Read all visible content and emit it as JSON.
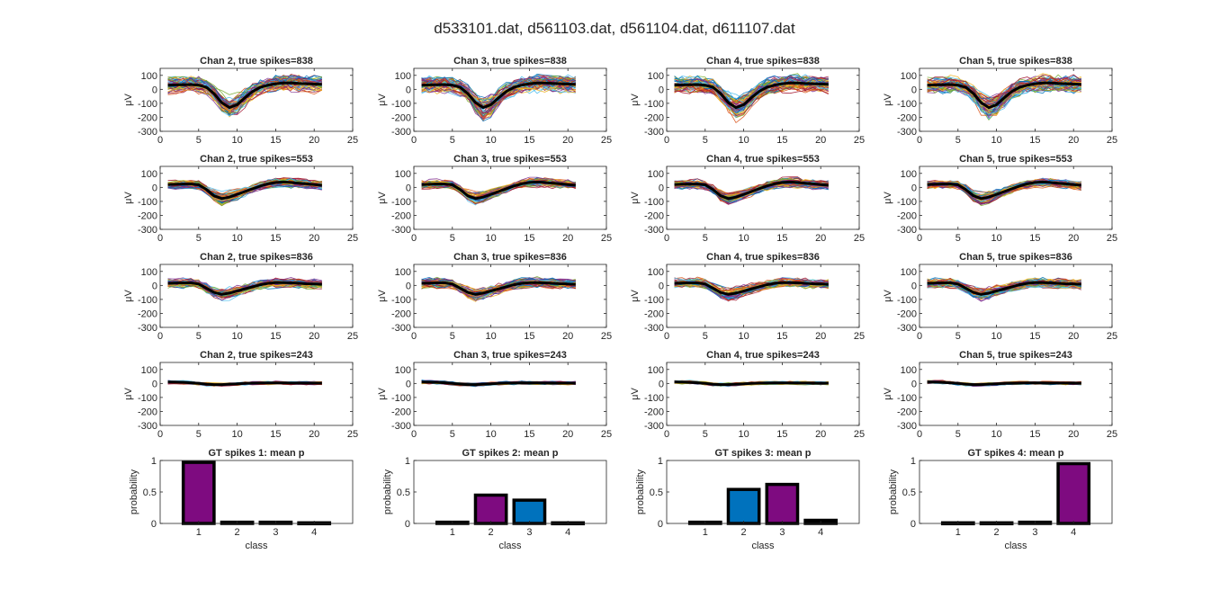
{
  "figure": {
    "title": "d533101.dat, d561103.dat, d561104.dat, d611107.dat",
    "colors": {
      "mean_line": "#000000",
      "bar_purple": "#7e0b80",
      "bar_blue": "#0072bd",
      "trace_palette": [
        "#0072bd",
        "#d95319",
        "#edb120",
        "#7e2f8e",
        "#77ac30",
        "#4dbeee",
        "#a2142f"
      ]
    }
  },
  "chart_data": [
    {
      "type": "line",
      "grid_row": 0,
      "grid_col": 0,
      "title": "Chan 2, true spikes=838",
      "ylabel": "μV",
      "xlim": [
        0,
        25
      ],
      "ylim": [
        -300,
        150
      ],
      "xticks": [
        0,
        5,
        10,
        15,
        20,
        25
      ],
      "yticks": [
        -300,
        -200,
        -100,
        0,
        100
      ],
      "grid": false,
      "x_samples": [
        1,
        21
      ],
      "mean_waveform": [
        30,
        32,
        33,
        34,
        30,
        15,
        -30,
        -95,
        -130,
        -110,
        -60,
        -15,
        15,
        30,
        40,
        45,
        45,
        42,
        40,
        38,
        35
      ],
      "trace_spread": 70
    },
    {
      "type": "line",
      "grid_row": 0,
      "grid_col": 1,
      "title": "Chan 3, true spikes=838",
      "ylabel": "μV",
      "xlim": [
        0,
        25
      ],
      "ylim": [
        -300,
        150
      ],
      "xticks": [
        0,
        5,
        10,
        15,
        20,
        25
      ],
      "yticks": [
        -300,
        -200,
        -100,
        0,
        100
      ],
      "grid": false,
      "x_samples": [
        1,
        21
      ],
      "mean_waveform": [
        30,
        32,
        33,
        34,
        30,
        15,
        -30,
        -95,
        -130,
        -110,
        -60,
        -15,
        15,
        30,
        40,
        45,
        45,
        42,
        40,
        38,
        35
      ],
      "trace_spread": 70
    },
    {
      "type": "line",
      "grid_row": 0,
      "grid_col": 2,
      "title": "Chan 4, true spikes=838",
      "ylabel": "μV",
      "xlim": [
        0,
        25
      ],
      "ylim": [
        -300,
        150
      ],
      "xticks": [
        0,
        5,
        10,
        15,
        20,
        25
      ],
      "yticks": [
        -300,
        -200,
        -100,
        0,
        100
      ],
      "grid": false,
      "x_samples": [
        1,
        21
      ],
      "mean_waveform": [
        30,
        32,
        33,
        34,
        30,
        15,
        -30,
        -95,
        -130,
        -110,
        -60,
        -15,
        15,
        30,
        40,
        45,
        45,
        42,
        40,
        38,
        35
      ],
      "trace_spread": 70
    },
    {
      "type": "line",
      "grid_row": 0,
      "grid_col": 3,
      "title": "Chan 5, true spikes=838",
      "ylabel": "μV",
      "xlim": [
        0,
        25
      ],
      "ylim": [
        -300,
        150
      ],
      "xticks": [
        0,
        5,
        10,
        15,
        20,
        25
      ],
      "yticks": [
        -300,
        -200,
        -100,
        0,
        100
      ],
      "grid": false,
      "x_samples": [
        1,
        21
      ],
      "mean_waveform": [
        30,
        32,
        33,
        34,
        30,
        15,
        -30,
        -95,
        -130,
        -110,
        -60,
        -15,
        15,
        30,
        40,
        45,
        45,
        42,
        40,
        38,
        35
      ],
      "trace_spread": 70
    },
    {
      "type": "line",
      "grid_row": 1,
      "grid_col": 0,
      "title": "Chan 2, true spikes=553",
      "ylabel": "μV",
      "xlim": [
        0,
        25
      ],
      "ylim": [
        -300,
        150
      ],
      "xticks": [
        0,
        5,
        10,
        15,
        20,
        25
      ],
      "yticks": [
        -300,
        -200,
        -100,
        0,
        100
      ],
      "grid": false,
      "x_samples": [
        1,
        21
      ],
      "mean_waveform": [
        20,
        22,
        24,
        24,
        18,
        -15,
        -60,
        -80,
        -70,
        -50,
        -30,
        -10,
        10,
        25,
        35,
        38,
        35,
        30,
        25,
        20,
        15
      ],
      "trace_spread": 35
    },
    {
      "type": "line",
      "grid_row": 1,
      "grid_col": 1,
      "title": "Chan 3, true spikes=553",
      "ylabel": "μV",
      "xlim": [
        0,
        25
      ],
      "ylim": [
        -300,
        150
      ],
      "xticks": [
        0,
        5,
        10,
        15,
        20,
        25
      ],
      "yticks": [
        -300,
        -200,
        -100,
        0,
        100
      ],
      "grid": false,
      "x_samples": [
        1,
        21
      ],
      "mean_waveform": [
        20,
        22,
        24,
        24,
        18,
        -15,
        -60,
        -80,
        -70,
        -50,
        -30,
        -10,
        10,
        25,
        35,
        38,
        35,
        30,
        25,
        20,
        15
      ],
      "trace_spread": 35
    },
    {
      "type": "line",
      "grid_row": 1,
      "grid_col": 2,
      "title": "Chan 4, true spikes=553",
      "ylabel": "μV",
      "xlim": [
        0,
        25
      ],
      "ylim": [
        -300,
        150
      ],
      "xticks": [
        0,
        5,
        10,
        15,
        20,
        25
      ],
      "yticks": [
        -300,
        -200,
        -100,
        0,
        100
      ],
      "grid": false,
      "x_samples": [
        1,
        21
      ],
      "mean_waveform": [
        20,
        22,
        24,
        24,
        18,
        -15,
        -60,
        -80,
        -70,
        -50,
        -30,
        -10,
        10,
        25,
        35,
        38,
        35,
        30,
        25,
        20,
        15
      ],
      "trace_spread": 35
    },
    {
      "type": "line",
      "grid_row": 1,
      "grid_col": 3,
      "title": "Chan 5, true spikes=553",
      "ylabel": "μV",
      "xlim": [
        0,
        25
      ],
      "ylim": [
        -300,
        150
      ],
      "xticks": [
        0,
        5,
        10,
        15,
        20,
        25
      ],
      "yticks": [
        -300,
        -200,
        -100,
        0,
        100
      ],
      "grid": false,
      "x_samples": [
        1,
        21
      ],
      "mean_waveform": [
        20,
        22,
        24,
        24,
        18,
        -15,
        -60,
        -80,
        -70,
        -50,
        -30,
        -10,
        10,
        25,
        35,
        38,
        35,
        30,
        25,
        20,
        15
      ],
      "trace_spread": 35
    },
    {
      "type": "line",
      "grid_row": 2,
      "grid_col": 0,
      "title": "Chan 2, true spikes=836",
      "ylabel": "μV",
      "xlim": [
        0,
        25
      ],
      "ylim": [
        -300,
        150
      ],
      "xticks": [
        0,
        5,
        10,
        15,
        20,
        25
      ],
      "yticks": [
        -300,
        -200,
        -100,
        0,
        100
      ],
      "grid": false,
      "x_samples": [
        1,
        21
      ],
      "mean_waveform": [
        15,
        17,
        18,
        18,
        10,
        -20,
        -50,
        -65,
        -55,
        -40,
        -25,
        -10,
        5,
        15,
        20,
        20,
        18,
        15,
        12,
        10,
        8
      ],
      "trace_spread": 40
    },
    {
      "type": "line",
      "grid_row": 2,
      "grid_col": 1,
      "title": "Chan 3, true spikes=836",
      "ylabel": "μV",
      "xlim": [
        0,
        25
      ],
      "ylim": [
        -300,
        150
      ],
      "xticks": [
        0,
        5,
        10,
        15,
        20,
        25
      ],
      "yticks": [
        -300,
        -200,
        -100,
        0,
        100
      ],
      "grid": false,
      "x_samples": [
        1,
        21
      ],
      "mean_waveform": [
        15,
        17,
        18,
        18,
        10,
        -20,
        -50,
        -65,
        -55,
        -40,
        -25,
        -10,
        5,
        15,
        20,
        20,
        18,
        15,
        12,
        10,
        8
      ],
      "trace_spread": 40
    },
    {
      "type": "line",
      "grid_row": 2,
      "grid_col": 2,
      "title": "Chan 4, true spikes=836",
      "ylabel": "μV",
      "xlim": [
        0,
        25
      ],
      "ylim": [
        -300,
        150
      ],
      "xticks": [
        0,
        5,
        10,
        15,
        20,
        25
      ],
      "yticks": [
        -300,
        -200,
        -100,
        0,
        100
      ],
      "grid": false,
      "x_samples": [
        1,
        21
      ],
      "mean_waveform": [
        15,
        17,
        18,
        18,
        10,
        -20,
        -50,
        -65,
        -55,
        -40,
        -25,
        -10,
        5,
        15,
        20,
        20,
        18,
        15,
        12,
        10,
        8
      ],
      "trace_spread": 40
    },
    {
      "type": "line",
      "grid_row": 2,
      "grid_col": 3,
      "title": "Chan 5, true spikes=836",
      "ylabel": "μV",
      "xlim": [
        0,
        25
      ],
      "ylim": [
        -300,
        150
      ],
      "xticks": [
        0,
        5,
        10,
        15,
        20,
        25
      ],
      "yticks": [
        -300,
        -200,
        -100,
        0,
        100
      ],
      "grid": false,
      "x_samples": [
        1,
        21
      ],
      "mean_waveform": [
        15,
        17,
        18,
        18,
        10,
        -20,
        -50,
        -65,
        -55,
        -40,
        -25,
        -10,
        5,
        15,
        20,
        20,
        18,
        15,
        12,
        10,
        8
      ],
      "trace_spread": 40
    },
    {
      "type": "line",
      "grid_row": 3,
      "grid_col": 0,
      "title": "Chan 2, true spikes=243",
      "ylabel": "μV",
      "xlim": [
        0,
        25
      ],
      "ylim": [
        -300,
        150
      ],
      "xticks": [
        0,
        5,
        10,
        15,
        20,
        25
      ],
      "yticks": [
        -300,
        -200,
        -100,
        0,
        100
      ],
      "grid": false,
      "x_samples": [
        1,
        21
      ],
      "mean_waveform": [
        10,
        9,
        8,
        5,
        0,
        -5,
        -8,
        -8,
        -5,
        -3,
        0,
        2,
        3,
        4,
        4,
        4,
        3,
        3,
        2,
        2,
        2
      ],
      "trace_spread": 14
    },
    {
      "type": "line",
      "grid_row": 3,
      "grid_col": 1,
      "title": "Chan 3, true spikes=243",
      "ylabel": "μV",
      "xlim": [
        0,
        25
      ],
      "ylim": [
        -300,
        150
      ],
      "xticks": [
        0,
        5,
        10,
        15,
        20,
        25
      ],
      "yticks": [
        -300,
        -200,
        -100,
        0,
        100
      ],
      "grid": false,
      "x_samples": [
        1,
        21
      ],
      "mean_waveform": [
        10,
        9,
        8,
        5,
        0,
        -5,
        -8,
        -8,
        -5,
        -3,
        0,
        2,
        3,
        4,
        4,
        4,
        3,
        3,
        2,
        2,
        2
      ],
      "trace_spread": 14
    },
    {
      "type": "line",
      "grid_row": 3,
      "grid_col": 2,
      "title": "Chan 4, true spikes=243",
      "ylabel": "μV",
      "xlim": [
        0,
        25
      ],
      "ylim": [
        -300,
        150
      ],
      "xticks": [
        0,
        5,
        10,
        15,
        20,
        25
      ],
      "yticks": [
        -300,
        -200,
        -100,
        0,
        100
      ],
      "grid": false,
      "x_samples": [
        1,
        21
      ],
      "mean_waveform": [
        10,
        9,
        8,
        5,
        0,
        -5,
        -8,
        -8,
        -5,
        -3,
        0,
        2,
        3,
        4,
        4,
        4,
        3,
        3,
        2,
        2,
        2
      ],
      "trace_spread": 14
    },
    {
      "type": "line",
      "grid_row": 3,
      "grid_col": 3,
      "title": "Chan 5, true spikes=243",
      "ylabel": "μV",
      "xlim": [
        0,
        25
      ],
      "ylim": [
        -300,
        150
      ],
      "xticks": [
        0,
        5,
        10,
        15,
        20,
        25
      ],
      "yticks": [
        -300,
        -200,
        -100,
        0,
        100
      ],
      "grid": false,
      "x_samples": [
        1,
        21
      ],
      "mean_waveform": [
        10,
        9,
        8,
        5,
        0,
        -5,
        -8,
        -8,
        -5,
        -3,
        0,
        2,
        3,
        4,
        4,
        4,
        3,
        3,
        2,
        2,
        2
      ],
      "trace_spread": 14
    },
    {
      "type": "bar",
      "grid_row": 4,
      "grid_col": 0,
      "title": "GT spikes 1: mean p",
      "xlabel": "class",
      "ylabel": "probability",
      "categories": [
        "1",
        "2",
        "3",
        "4"
      ],
      "values": [
        0.97,
        0.02,
        0.02,
        0.01
      ],
      "bar_colors": [
        "#7e0b80",
        "#7e0b80",
        "#7e0b80",
        "#7e0b80"
      ],
      "xlim": [
        0,
        5
      ],
      "ylim": [
        0,
        1
      ],
      "yticks": [
        "0",
        "0.5",
        "1"
      ]
    },
    {
      "type": "bar",
      "grid_row": 4,
      "grid_col": 1,
      "title": "GT spikes 2: mean p",
      "xlabel": "class",
      "ylabel": "probability",
      "categories": [
        "1",
        "2",
        "3",
        "4"
      ],
      "values": [
        0.02,
        0.45,
        0.37,
        0.01
      ],
      "bar_colors": [
        "#7e0b80",
        "#7e0b80",
        "#0072bd",
        "#7e0b80"
      ],
      "xlim": [
        0,
        5
      ],
      "ylim": [
        0,
        1
      ],
      "yticks": [
        "0",
        "0.5",
        "1"
      ]
    },
    {
      "type": "bar",
      "grid_row": 4,
      "grid_col": 2,
      "title": "GT spikes 3: mean p",
      "xlabel": "class",
      "ylabel": "probability",
      "categories": [
        "1",
        "2",
        "3",
        "4"
      ],
      "values": [
        0.02,
        0.54,
        0.62,
        0.05
      ],
      "bar_colors": [
        "#7e0b80",
        "#0072bd",
        "#7e0b80",
        "#7e0b80"
      ],
      "xlim": [
        0,
        5
      ],
      "ylim": [
        0,
        1
      ],
      "yticks": [
        "0",
        "0.5",
        "1"
      ]
    },
    {
      "type": "bar",
      "grid_row": 4,
      "grid_col": 3,
      "title": "GT spikes 4: mean p",
      "xlabel": "class",
      "ylabel": "probability",
      "categories": [
        "1",
        "2",
        "3",
        "4"
      ],
      "values": [
        0.01,
        0.01,
        0.02,
        0.95
      ],
      "bar_colors": [
        "#7e0b80",
        "#7e0b80",
        "#7e0b80",
        "#7e0b80"
      ],
      "xlim": [
        0,
        5
      ],
      "ylim": [
        0,
        1
      ],
      "yticks": [
        "0",
        "0.5",
        "1"
      ]
    }
  ]
}
